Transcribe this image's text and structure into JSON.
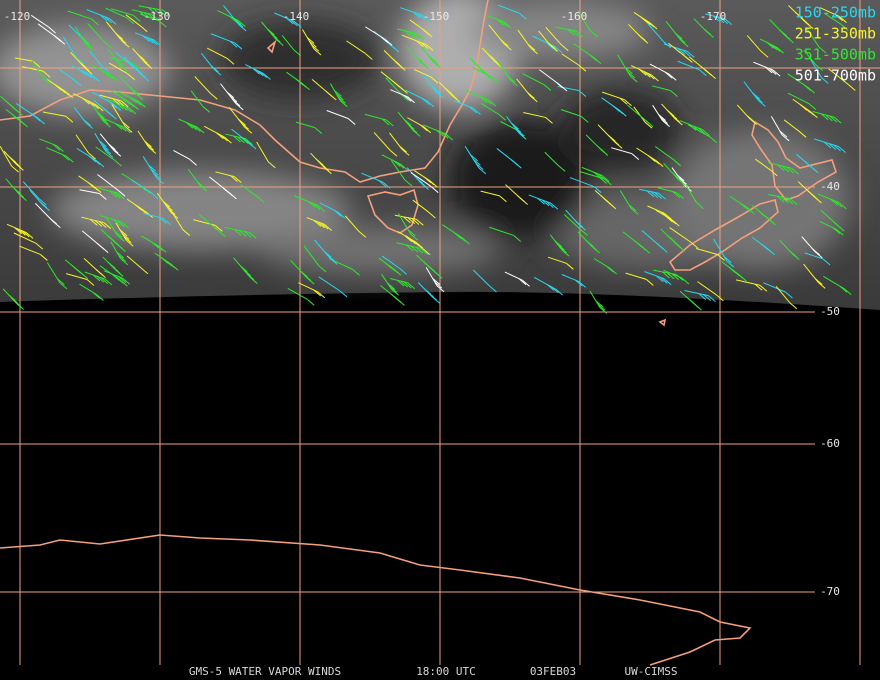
{
  "map": {
    "longitude_labels": [
      "-120",
      "-130",
      "-140",
      "-150",
      "-160",
      "-170"
    ],
    "latitude_labels": [
      "-40",
      "-50",
      "-60",
      "-70"
    ]
  },
  "legend": [
    {
      "label": "150-250mb",
      "color": "#27d8f0"
    },
    {
      "label": "251-350mb",
      "color": "#f5f52a"
    },
    {
      "label": "351-500mb",
      "color": "#2ee82e"
    },
    {
      "label": "501-700mb",
      "color": "#ffffff"
    }
  ],
  "footer": [
    "GMS-5 WATER VAPOR WINDS",
    "18:00 UTC",
    "03FEB03",
    "UW-CIMSS"
  ]
}
